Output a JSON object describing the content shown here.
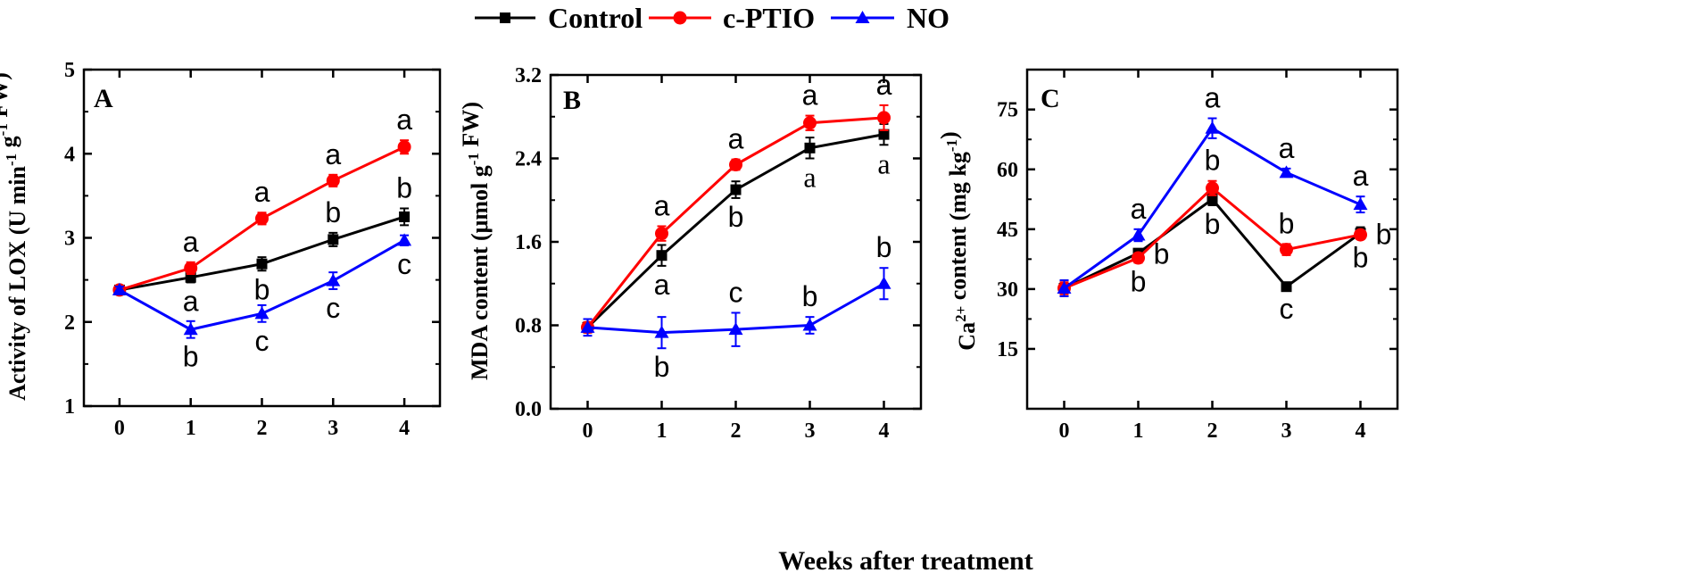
{
  "legend": {
    "entries": [
      {
        "name": "Control",
        "color": "#000000",
        "marker": "square"
      },
      {
        "name": "c-PTIO",
        "color": "#ff0000",
        "marker": "circle"
      },
      {
        "name": "NO",
        "color": "#0000ff",
        "marker": "triangle"
      }
    ]
  },
  "shared_xlabel": "Weeks after treatment",
  "chart_data": [
    {
      "type": "line",
      "panel_label": "A",
      "ylabel": "Activity of  LOX (U min^-1 g^-1 FW)",
      "ylabel_parts": {
        "main": "Activity of  LOX (U min",
        "sup1": "-1",
        "mid": " g",
        "sup2": "-1",
        "end": " FW)"
      },
      "x": [
        0,
        1,
        2,
        3,
        4
      ],
      "xticks": [
        "0",
        "1",
        "2",
        "3",
        "4"
      ],
      "xlim": [
        -0.5,
        4.5
      ],
      "ylim": [
        1,
        5
      ],
      "yticks": [
        "1",
        "2",
        "3",
        "4",
        "5"
      ],
      "yticks_values": [
        1,
        2,
        3,
        4,
        5
      ],
      "series": [
        {
          "name": "Control",
          "values": [
            2.38,
            2.53,
            2.69,
            2.98,
            3.25
          ],
          "errors": [
            0.04,
            0.06,
            0.08,
            0.08,
            0.1
          ],
          "letters": [
            "",
            "a",
            "b",
            "b",
            "b"
          ],
          "letter_pos": [
            "",
            "below",
            "below",
            "above",
            "above"
          ]
        },
        {
          "name": "c-PTIO",
          "values": [
            2.38,
            2.64,
            3.23,
            3.68,
            4.08
          ],
          "errors": [
            0.04,
            0.07,
            0.07,
            0.07,
            0.08
          ],
          "letters": [
            "",
            "a",
            "a",
            "a",
            "a"
          ],
          "letter_pos": [
            "",
            "above",
            "above",
            "above",
            "above"
          ]
        },
        {
          "name": "NO",
          "values": [
            2.38,
            1.91,
            2.1,
            2.49,
            2.97
          ],
          "errors": [
            0.04,
            0.1,
            0.1,
            0.1,
            0.06
          ],
          "letters": [
            "",
            "b",
            "c",
            "c",
            "c"
          ],
          "letter_pos": [
            "",
            "below",
            "below",
            "below",
            "below"
          ]
        }
      ]
    },
    {
      "type": "line",
      "panel_label": "B",
      "ylabel": "MDA content (μmol g^-1 FW)",
      "ylabel_parts": {
        "main": "MDA content (μmol g",
        "sup1": "-1",
        "end": " FW)"
      },
      "x": [
        0,
        1,
        2,
        3,
        4
      ],
      "xticks": [
        "0",
        "1",
        "2",
        "3",
        "4"
      ],
      "xlim": [
        -0.5,
        4.5
      ],
      "ylim": [
        0,
        3.2
      ],
      "yticks": [
        "0.0",
        "0.8",
        "1.6",
        "2.4",
        "3.2"
      ],
      "yticks_values": [
        0,
        0.8,
        1.6,
        2.4,
        3.2
      ],
      "series": [
        {
          "name": "Control",
          "values": [
            0.78,
            1.47,
            2.1,
            2.5,
            2.63
          ],
          "errors": [
            0.05,
            0.1,
            0.08,
            0.1,
            0.1
          ],
          "letters": [
            "",
            "a",
            "b",
            "a",
            "a"
          ],
          "letter_pos": [
            "",
            "below",
            "below",
            "below",
            "below"
          ],
          "letter_font": [
            "",
            "sans",
            "sans",
            "serif",
            "serif"
          ]
        },
        {
          "name": "c-PTIO",
          "values": [
            0.78,
            1.68,
            2.34,
            2.74,
            2.79
          ],
          "errors": [
            0.05,
            0.07,
            0.05,
            0.07,
            0.12
          ],
          "letters": [
            "",
            "a",
            "a",
            "a",
            "a"
          ],
          "letter_pos": [
            "",
            "above",
            "above",
            "above",
            "above"
          ]
        },
        {
          "name": "NO",
          "values": [
            0.78,
            0.73,
            0.76,
            0.8,
            1.2
          ],
          "errors": [
            0.08,
            0.15,
            0.16,
            0.08,
            0.15
          ],
          "letters": [
            "",
            "b",
            "c",
            "b",
            "b"
          ],
          "letter_pos": [
            "",
            "below",
            "above",
            "above",
            "above"
          ]
        }
      ]
    },
    {
      "type": "line",
      "panel_label": "C",
      "ylabel": "Ca2+ content (mg kg^-1)",
      "ylabel_parts": {
        "main": "Ca",
        "sup1": "2+",
        "mid": " content (mg kg",
        "sup2": "-1",
        "end": ")"
      },
      "x": [
        0,
        1,
        2,
        3,
        4
      ],
      "xticks": [
        "0",
        "1",
        "2",
        "3",
        "4"
      ],
      "xlim": [
        -0.5,
        4.5
      ],
      "ylim": [
        0,
        85
      ],
      "yticks": [
        "15",
        "30",
        "45",
        "60",
        "75"
      ],
      "yticks_values": [
        15,
        30,
        45,
        60,
        75
      ],
      "series": [
        {
          "name": "Control",
          "values": [
            30.2,
            39.0,
            52.5,
            30.6,
            44.0
          ],
          "errors": [
            2.0,
            1.0,
            1.5,
            0.8,
            1.5
          ],
          "letters": [
            "",
            "b",
            "b",
            "c",
            "b"
          ],
          "letter_pos": [
            "",
            "right",
            "below",
            "below",
            "right"
          ]
        },
        {
          "name": "c-PTIO",
          "values": [
            30.2,
            37.8,
            55.3,
            39.9,
            43.6
          ],
          "errors": [
            1.5,
            1.2,
            1.8,
            1.4,
            1.0
          ],
          "letters": [
            "",
            "b",
            "b",
            "b",
            "b"
          ],
          "letter_pos": [
            "",
            "below",
            "above",
            "above",
            "below"
          ]
        },
        {
          "name": "NO",
          "values": [
            30.2,
            43.5,
            70.3,
            59.2,
            51.2
          ],
          "errors": [
            2.0,
            1.5,
            2.5,
            1.0,
            2.0
          ],
          "letters": [
            "",
            "a",
            "a",
            "a",
            "a"
          ],
          "letter_pos": [
            "",
            "above",
            "above",
            "above",
            "above"
          ]
        }
      ]
    }
  ]
}
